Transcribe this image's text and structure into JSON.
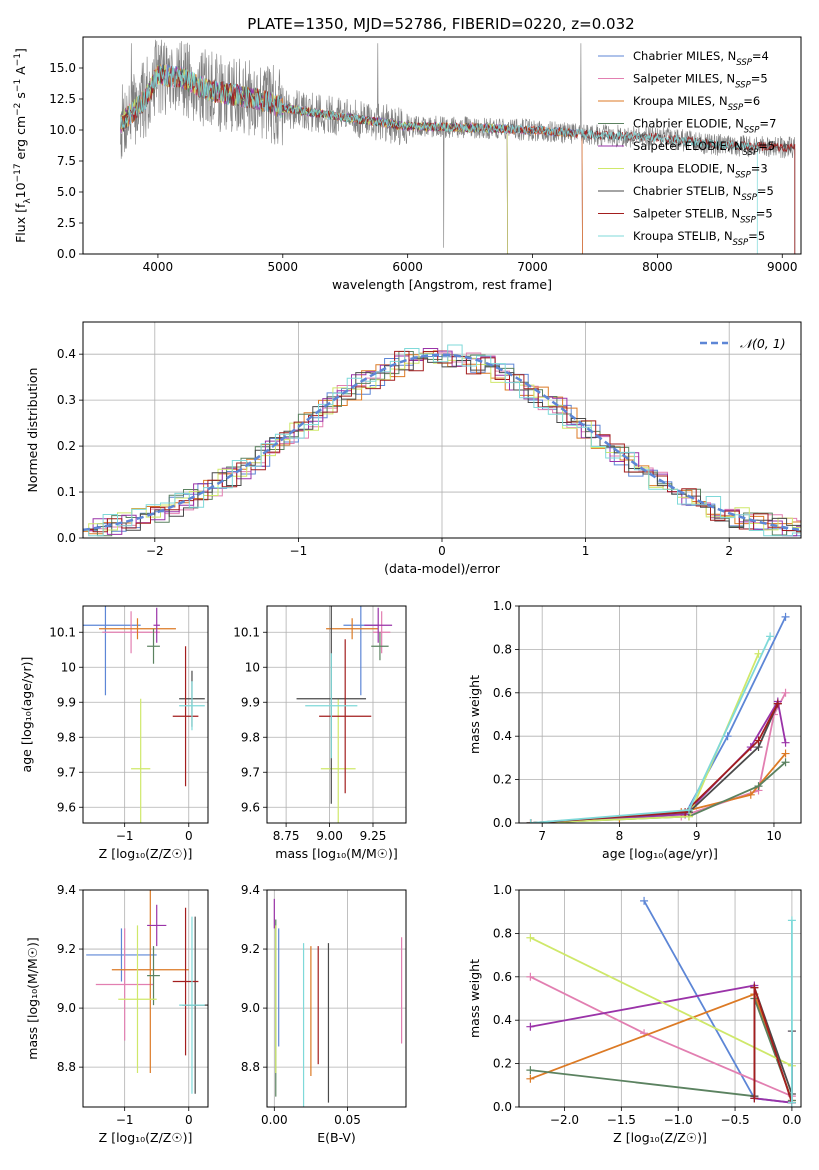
{
  "colors": {
    "Chabrier MILES": "#5d86d6",
    "Salpeter MILES": "#e27fb1",
    "Kroupa MILES": "#dc7a25",
    "Chabrier ELODIE": "#5b8260",
    "Salpeter ELODIE": "#9a33a8",
    "Kroupa ELODIE": "#cfe86a",
    "Chabrier STELIB": "#4a4a4a",
    "Salpeter STELIB": "#a31e1e",
    "Kroupa STELIB": "#7fd9d9",
    "normal": "#5d86d6",
    "grid": "#b0b0b0",
    "spectrum_data": "#7f7f7f"
  },
  "chart_data": [
    {
      "id": "spectrum",
      "type": "line",
      "title": "PLATE=1350, MJD=52786, FIBERID=0220, z=0.032",
      "xlabel": "wavelength [Angstrom, rest frame]",
      "ylabel_parts": [
        "Flux [f",
        "λ",
        "10",
        "−17",
        " erg cm",
        "−2",
        " s",
        "−1",
        " A",
        "−1",
        "]"
      ],
      "xlim": [
        3400,
        9150
      ],
      "ylim": [
        0,
        17.5
      ],
      "xticks": [
        4000,
        5000,
        6000,
        7000,
        8000,
        9000
      ],
      "yticks": [
        0.0,
        2.5,
        5.0,
        7.5,
        10.0,
        12.5,
        15.0
      ],
      "ytick_labels": [
        "0.0",
        "2.5",
        "5.0",
        "7.5",
        "10.0",
        "12.5",
        "15.0"
      ],
      "legend": [
        {
          "name": "Chabrier MILES",
          "n_ssp": 4
        },
        {
          "name": "Salpeter MILES",
          "n_ssp": 5
        },
        {
          "name": "Kroupa MILES",
          "n_ssp": 6
        },
        {
          "name": "Chabrier ELODIE",
          "n_ssp": 7
        },
        {
          "name": "Salpeter ELODIE",
          "n_ssp": 5
        },
        {
          "name": "Kroupa ELODIE",
          "n_ssp": 3
        },
        {
          "name": "Chabrier STELIB",
          "n_ssp": 5
        },
        {
          "name": "Salpeter STELIB",
          "n_ssp": 5
        },
        {
          "name": "Kroupa STELIB",
          "n_ssp": 5
        }
      ],
      "legend_subscript": "SSP",
      "legend_prefix": "N",
      "continuum_knots": [
        [
          3700,
          10.5
        ],
        [
          3900,
          12.5
        ],
        [
          4000,
          14.5
        ],
        [
          4200,
          14.2
        ],
        [
          4400,
          13.2
        ],
        [
          4800,
          12.5
        ],
        [
          5000,
          11.8
        ],
        [
          5500,
          11.0
        ],
        [
          6000,
          10.3
        ],
        [
          6500,
          10.2
        ],
        [
          7000,
          10.0
        ],
        [
          7500,
          9.6
        ],
        [
          8000,
          9.4
        ],
        [
          8500,
          8.8
        ],
        [
          9000,
          8.6
        ]
      ],
      "data_range": [
        3700,
        9100
      ],
      "model_ranges": {
        "Chabrier MILES": [
          3700,
          7400
        ],
        "Salpeter MILES": [
          3700,
          7400
        ],
        "Kroupa MILES": [
          3700,
          7400
        ],
        "Chabrier ELODIE": [
          3700,
          6800
        ],
        "Salpeter ELODIE": [
          3700,
          6800
        ],
        "Kroupa ELODIE": [
          3700,
          6800
        ],
        "Chabrier STELIB": [
          3700,
          9100
        ],
        "Salpeter STELIB": [
          3700,
          9100
        ],
        "Kroupa STELIB": [
          3700,
          8800
        ]
      }
    },
    {
      "id": "residuals",
      "type": "line",
      "xlabel": "(data-model)/error",
      "ylabel": "Normed distribution",
      "xlim": [
        -2.5,
        2.5
      ],
      "ylim": [
        0,
        0.47
      ],
      "xticks": [
        -2,
        -1,
        0,
        1,
        2
      ],
      "xtick_labels": [
        "−2",
        "−1",
        "0",
        "1",
        "2"
      ],
      "yticks": [
        0.0,
        0.1,
        0.2,
        0.3,
        0.4
      ],
      "ytick_labels": [
        "0.0",
        "0.1",
        "0.2",
        "0.3",
        "0.4"
      ],
      "normal_label": "𝒩(0, 1)",
      "bin_width": 0.1
    },
    {
      "id": "age_vs_Z",
      "type": "scatter",
      "xlabel": "Z [log₁₀(Z/Z☉)]",
      "ylabel": "age  [log₁₀(age/yr)]",
      "xlim": [
        -1.65,
        0.3
      ],
      "ylim": [
        9.555,
        10.175
      ],
      "xticks": [
        -1,
        0
      ],
      "xtick_labels": [
        "−1",
        "0"
      ],
      "yticks": [
        9.6,
        9.7,
        9.8,
        9.9,
        10.0,
        10.1
      ],
      "points": [
        {
          "model": "Chabrier MILES",
          "x": -1.3,
          "xerr": 0.55,
          "y": 10.12,
          "yerr": 0.2
        },
        {
          "model": "Salpeter MILES",
          "x": -0.9,
          "xerr": 0.45,
          "y": 10.1,
          "yerr": 0.06
        },
        {
          "model": "Kroupa MILES",
          "x": -0.8,
          "xerr": 0.6,
          "y": 10.11,
          "yerr": 0.03
        },
        {
          "model": "Chabrier ELODIE",
          "x": -0.55,
          "xerr": 0.1,
          "y": 10.06,
          "yerr": 0.05
        },
        {
          "model": "Salpeter ELODIE",
          "x": -0.5,
          "xerr": 0.05,
          "y": 10.12,
          "yerr": 0.05
        },
        {
          "model": "Kroupa ELODIE",
          "x": -0.75,
          "xerr": 0.15,
          "y": 9.71,
          "yerr": 0.2
        },
        {
          "model": "Chabrier STELIB",
          "x": 0.05,
          "xerr": 0.2,
          "y": 9.91,
          "yerr": 0.08
        },
        {
          "model": "Salpeter STELIB",
          "x": -0.05,
          "xerr": 0.2,
          "y": 9.86,
          "yerr": 0.2
        },
        {
          "model": "Kroupa STELIB",
          "x": 0.05,
          "xerr": 0.2,
          "y": 9.89,
          "yerr": 0.07
        }
      ]
    },
    {
      "id": "age_vs_mass",
      "type": "scatter",
      "xlabel": "mass [log₁₀(M/M☉)]",
      "xlim": [
        8.64,
        9.44
      ],
      "ylim": [
        9.555,
        10.175
      ],
      "xticks": [
        8.75,
        9.0,
        9.25
      ],
      "xtick_labels": [
        "8.75",
        "9.00",
        "9.25"
      ],
      "yticks": [
        9.6,
        9.7,
        9.8,
        9.9,
        10.0,
        10.1
      ],
      "points": [
        {
          "model": "Chabrier MILES",
          "x": 9.18,
          "xerr": 0.1,
          "y": 10.12,
          "yerr": 0.2
        },
        {
          "model": "Salpeter MILES",
          "x": 9.3,
          "xerr": 0.05,
          "y": 10.1,
          "yerr": 0.06
        },
        {
          "model": "Kroupa MILES",
          "x": 9.13,
          "xerr": 0.15,
          "y": 10.11,
          "yerr": 0.03
        },
        {
          "model": "Chabrier ELODIE",
          "x": 9.29,
          "xerr": 0.05,
          "y": 10.06,
          "yerr": 0.04
        },
        {
          "model": "Salpeter ELODIE",
          "x": 9.28,
          "xerr": 0.08,
          "y": 10.12,
          "yerr": 0.05
        },
        {
          "model": "Kroupa ELODIE",
          "x": 9.05,
          "xerr": 0.1,
          "y": 9.71,
          "yerr": 0.2
        },
        {
          "model": "Chabrier STELIB",
          "x": 9.01,
          "xerr": 0.2,
          "y": 9.91,
          "yerr": 0.3
        },
        {
          "model": "Salpeter STELIB",
          "x": 9.09,
          "xerr": 0.15,
          "y": 9.86,
          "yerr": 0.22
        },
        {
          "model": "Kroupa STELIB",
          "x": 9.01,
          "xerr": 0.15,
          "y": 9.89,
          "yerr": 0.15
        }
      ]
    },
    {
      "id": "mass_weight_vs_age",
      "type": "line",
      "xlabel": "age  [log₁₀(age/yr)]",
      "ylabel": "mass weight",
      "xlim": [
        6.7,
        10.35
      ],
      "ylim": [
        0,
        1.0
      ],
      "xticks": [
        7,
        8,
        9,
        10
      ],
      "yticks": [
        0.0,
        0.2,
        0.4,
        0.6,
        0.8,
        1.0
      ],
      "ytick_labels": [
        "0.0",
        "0.2",
        "0.4",
        "0.6",
        "0.8",
        "1.0"
      ],
      "series": [
        {
          "model": "Chabrier MILES",
          "x": [
            6.85,
            8.85,
            9.4,
            10.15
          ],
          "y": [
            0.0,
            0.04,
            0.4,
            0.95
          ]
        },
        {
          "model": "Salpeter MILES",
          "x": [
            6.85,
            8.8,
            9.8,
            10.0,
            10.15
          ],
          "y": [
            0.0,
            0.03,
            0.15,
            0.5,
            0.6
          ]
        },
        {
          "model": "Kroupa MILES",
          "x": [
            6.85,
            8.0,
            8.8,
            9.7,
            10.15
          ],
          "y": [
            0.0,
            0.02,
            0.05,
            0.13,
            0.32
          ]
        },
        {
          "model": "Chabrier ELODIE",
          "x": [
            6.85,
            8.9,
            9.8,
            10.15
          ],
          "y": [
            0.0,
            0.03,
            0.17,
            0.28
          ]
        },
        {
          "model": "Salpeter ELODIE",
          "x": [
            6.85,
            8.85,
            9.7,
            10.05,
            10.15
          ],
          "y": [
            0.0,
            0.04,
            0.35,
            0.56,
            0.37
          ]
        },
        {
          "model": "Kroupa ELODIE",
          "x": [
            6.85,
            8.9,
            9.8
          ],
          "y": [
            0.0,
            0.03,
            0.78
          ]
        },
        {
          "model": "Chabrier STELIB",
          "x": [
            6.85,
            8.9,
            9.8,
            10.05
          ],
          "y": [
            0.0,
            0.05,
            0.35,
            0.55
          ]
        },
        {
          "model": "Salpeter STELIB",
          "x": [
            6.85,
            8.85,
            9.8,
            10.05
          ],
          "y": [
            0.0,
            0.05,
            0.38,
            0.55
          ]
        },
        {
          "model": "Kroupa STELIB",
          "x": [
            6.85,
            8.9,
            9.95
          ],
          "y": [
            0.0,
            0.06,
            0.86
          ]
        }
      ]
    },
    {
      "id": "mass_vs_Z",
      "type": "scatter",
      "xlabel": "Z [log₁₀(Z/Z☉)]",
      "ylabel": "mass [log₁₀(M/M☉)]",
      "xlim": [
        -1.65,
        0.3
      ],
      "ylim": [
        8.665,
        9.4
      ],
      "xticks": [
        -1,
        0
      ],
      "xtick_labels": [
        "−1",
        "0"
      ],
      "yticks": [
        8.8,
        9.0,
        9.2,
        9.4
      ],
      "ytick_labels": [
        "8.8",
        "9.0",
        "9.2",
        "9.4"
      ],
      "points": [
        {
          "model": "Chabrier MILES",
          "x": -1.05,
          "xerr": 0.55,
          "y": 9.18,
          "yerr": 0.09
        },
        {
          "model": "Salpeter MILES",
          "x": -1.0,
          "xerr": 0.45,
          "y": 9.08,
          "yerr": 0.19
        },
        {
          "model": "Kroupa MILES",
          "x": -0.6,
          "xerr": 0.6,
          "y": 9.13,
          "yerr": 0.35
        },
        {
          "model": "Chabrier ELODIE",
          "x": -0.55,
          "xerr": 0.1,
          "y": 9.11,
          "yerr": 0.1
        },
        {
          "model": "Salpeter ELODIE",
          "x": -0.5,
          "xerr": 0.15,
          "y": 9.28,
          "yerr": 0.07
        },
        {
          "model": "Kroupa ELODIE",
          "x": -0.8,
          "xerr": 0.3,
          "y": 9.03,
          "yerr": 0.25
        },
        {
          "model": "Chabrier STELIB",
          "x": 0.1,
          "xerr": 0.2,
          "y": 9.01,
          "yerr": 0.3
        },
        {
          "model": "Salpeter STELIB",
          "x": -0.05,
          "xerr": 0.2,
          "y": 9.09,
          "yerr": 0.25
        },
        {
          "model": "Kroupa STELIB",
          "x": 0.05,
          "xerr": 0.2,
          "y": 9.01,
          "yerr": 0.3
        }
      ]
    },
    {
      "id": "mass_vs_EBV",
      "type": "scatter",
      "xlabel": "E(B-V)",
      "xlim": [
        -0.005,
        0.09
      ],
      "ylim": [
        8.665,
        9.4
      ],
      "xticks": [
        0.0,
        0.05
      ],
      "xtick_labels": [
        "0.00",
        "0.05"
      ],
      "yticks": [
        8.8,
        9.0,
        9.2,
        9.4
      ],
      "ytick_labels": [
        "8.8",
        "9.0",
        "9.2",
        "9.4"
      ],
      "points": [
        {
          "model": "Chabrier MILES",
          "x": 0.003,
          "y": 9.07,
          "yerr": 0.2
        },
        {
          "model": "Salpeter MILES",
          "x": 0.087,
          "y": 9.06,
          "yerr": 0.18
        },
        {
          "model": "Kroupa MILES",
          "x": 0.025,
          "y": 8.99,
          "yerr": 0.22
        },
        {
          "model": "Chabrier ELODIE",
          "x": 0.001,
          "y": 9.0,
          "yerr": 0.3
        },
        {
          "model": "Salpeter ELODIE",
          "x": 0.0,
          "y": 9.32,
          "yerr": 0.05
        },
        {
          "model": "Kroupa ELODIE",
          "x": 0.001,
          "y": 9.03,
          "yerr": 0.25
        },
        {
          "model": "Chabrier STELIB",
          "x": 0.037,
          "y": 8.95,
          "yerr": 0.27
        },
        {
          "model": "Salpeter STELIB",
          "x": 0.03,
          "y": 9.01,
          "yerr": 0.2
        },
        {
          "model": "Kroupa STELIB",
          "x": 0.02,
          "y": 8.94,
          "yerr": 0.28
        }
      ]
    },
    {
      "id": "mass_weight_vs_Z",
      "type": "line",
      "xlabel": "Z [log₁₀(Z/Z☉)]",
      "ylabel": "mass weight",
      "xlim": [
        -2.4,
        0.08
      ],
      "ylim": [
        0,
        1.0
      ],
      "xticks": [
        -2.0,
        -1.5,
        -1.0,
        -0.5,
        0.0
      ],
      "xtick_labels": [
        "−2.0",
        "−1.5",
        "−1.0",
        "−0.5",
        "0.0"
      ],
      "yticks": [
        0.0,
        0.2,
        0.4,
        0.6,
        0.8,
        1.0
      ],
      "ytick_labels": [
        "0.0",
        "0.2",
        "0.4",
        "0.6",
        "0.8",
        "1.0"
      ],
      "series": [
        {
          "model": "Chabrier MILES",
          "x": [
            -1.3,
            -0.33,
            0.0
          ],
          "y": [
            0.95,
            0.04,
            0.02
          ]
        },
        {
          "model": "Salpeter MILES",
          "x": [
            -2.3,
            -1.3,
            0.0
          ],
          "y": [
            0.6,
            0.34,
            0.05
          ]
        },
        {
          "model": "Kroupa MILES",
          "x": [
            -2.3,
            -0.33,
            0.0
          ],
          "y": [
            0.13,
            0.52,
            0.03
          ]
        },
        {
          "model": "Chabrier ELODIE",
          "x": [
            -2.3,
            -0.33,
            -0.33,
            0.0
          ],
          "y": [
            0.17,
            0.05,
            0.5,
            0.03
          ]
        },
        {
          "model": "Salpeter ELODIE",
          "x": [
            -2.3,
            -0.33,
            -0.33,
            0.0,
            0.0
          ],
          "y": [
            0.37,
            0.56,
            0.04,
            0.02,
            0.35
          ]
        },
        {
          "model": "Kroupa ELODIE",
          "x": [
            -2.3,
            0.0
          ],
          "y": [
            0.78,
            0.19
          ]
        },
        {
          "model": "Chabrier STELIB",
          "x": [
            -0.33,
            -0.33,
            0.0,
            0.0
          ],
          "y": [
            0.05,
            0.55,
            0.06,
            0.35
          ]
        },
        {
          "model": "Salpeter STELIB",
          "x": [
            -0.33,
            -0.33,
            0.0
          ],
          "y": [
            0.04,
            0.55,
            0.02
          ]
        },
        {
          "model": "Kroupa STELIB",
          "x": [
            0.0,
            0.0
          ],
          "y": [
            0.86,
            0.02
          ]
        }
      ]
    }
  ]
}
